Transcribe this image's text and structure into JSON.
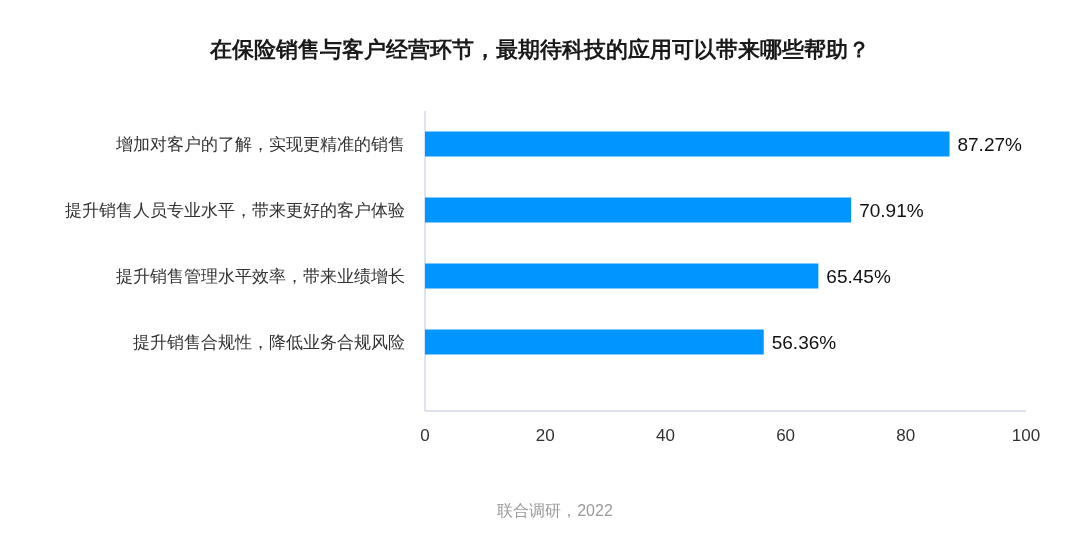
{
  "chart_data": {
    "type": "bar",
    "orientation": "horizontal",
    "title": "在保险销售与客户经营环节，最期待科技的应用可以带来哪些帮助？",
    "categories": [
      "增加对客户的了解，实现更精准的销售",
      "提升销售人员专业水平，带来更好的客户体验",
      "提升销售管理水平效率，带来业绩增长",
      "提升销售合规性，降低业务合规风险"
    ],
    "values": [
      87.27,
      70.91,
      65.45,
      56.36
    ],
    "color": "#0095ff",
    "value_labels": [
      "87.27%",
      "70.91%",
      "65.45%",
      "56.36%"
    ],
    "xlim": [
      0,
      100
    ],
    "xticks": [
      0,
      20,
      40,
      60,
      80,
      100
    ],
    "grid": false,
    "annotations": [
      "联合调研，2022"
    ]
  }
}
